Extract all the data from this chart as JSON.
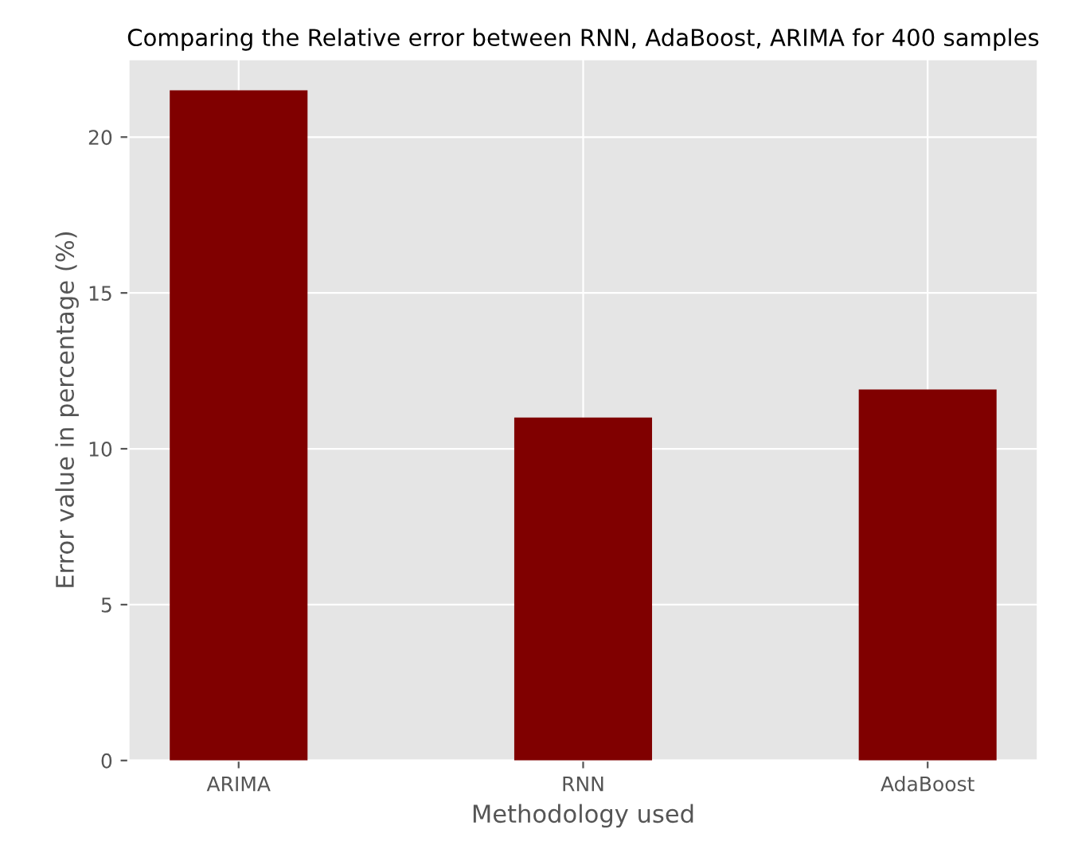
{
  "chart_data": {
    "type": "bar",
    "title": "Comparing the Relative error between RNN, AdaBoost, ARIMA for 400 samples",
    "xlabel": "Methodology used",
    "ylabel": "Error value in percentage (%)",
    "categories": [
      "ARIMA",
      "RNN",
      "AdaBoost"
    ],
    "values": [
      21.5,
      11.0,
      11.9
    ],
    "color": "#800000",
    "ylim": [
      0,
      22.5
    ],
    "yticks": [
      0,
      5,
      10,
      15,
      20
    ],
    "grid": true
  }
}
